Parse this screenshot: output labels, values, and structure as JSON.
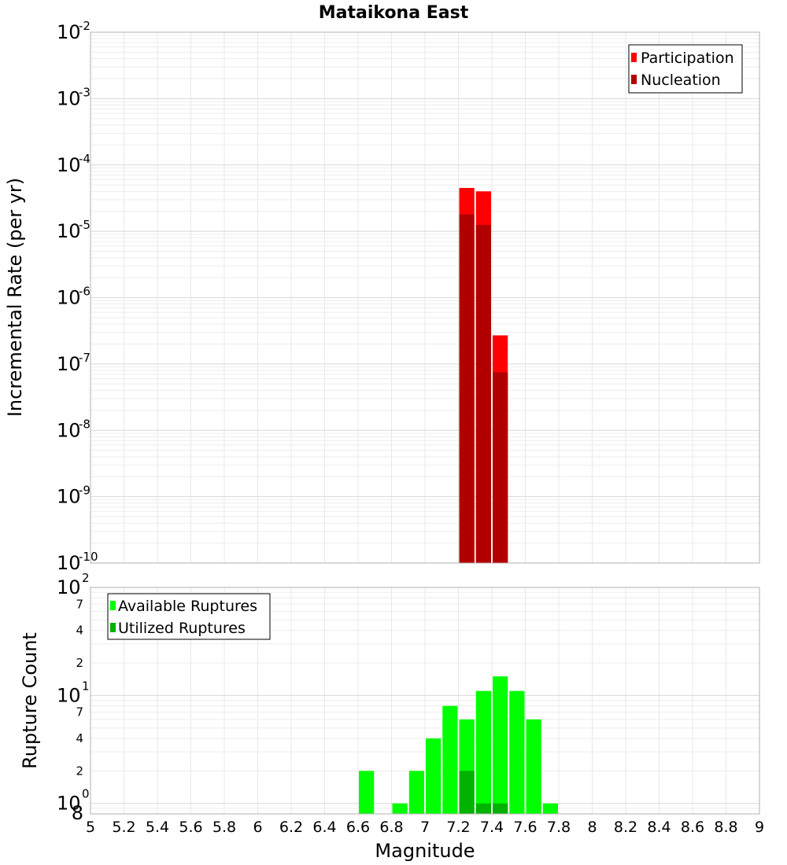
{
  "chart_data": [
    {
      "type": "bar",
      "title": "Mataikona East",
      "xlabel": "",
      "ylabel": "Incremental Rate (per yr)",
      "yscale": "log",
      "ylim": [
        1e-10,
        0.01
      ],
      "xlim": [
        5,
        9
      ],
      "bar_width": 0.1,
      "y_exponent_labels": [
        "-10",
        "-9",
        "-8",
        "-7",
        "-6",
        "-5",
        "-4",
        "-3",
        "-2"
      ],
      "legend": {
        "position": "top-right",
        "entries": [
          "Participation",
          "Nucleation"
        ]
      },
      "series": [
        {
          "name": "Participation",
          "color": "#ff0000",
          "x": [
            7.25,
            7.35,
            7.45
          ],
          "values": [
            4.5e-05,
            4e-05,
            2.7e-07
          ]
        },
        {
          "name": "Nucleation",
          "color": "#b20000",
          "x": [
            7.25,
            7.35,
            7.45
          ],
          "values": [
            1.8e-05,
            1.25e-05,
            7.5e-08
          ]
        }
      ]
    },
    {
      "type": "bar",
      "title": "",
      "xlabel": "Magnitude",
      "ylabel": "Rupture Count",
      "yscale": "log",
      "ylim": [
        0.8,
        100
      ],
      "xlim": [
        5,
        9
      ],
      "bar_width": 0.1,
      "x_ticks": [
        "5",
        "5.2",
        "5.4",
        "5.6",
        "5.8",
        "6",
        "6.2",
        "6.4",
        "6.6",
        "6.8",
        "7",
        "7.2",
        "7.4",
        "7.6",
        "7.8",
        "8",
        "8.2",
        "8.4",
        "8.6",
        "8.8",
        "9"
      ],
      "y_major_labels": [
        {
          "value": 1,
          "base": "10",
          "exp": "0"
        },
        {
          "value": 10,
          "base": "10",
          "exp": "1"
        },
        {
          "value": 100,
          "base": "10",
          "exp": "2"
        }
      ],
      "y_minor_labels": [
        "8",
        "2",
        "4",
        "7",
        "2",
        "4",
        "7"
      ],
      "legend": {
        "position": "top-left",
        "entries": [
          "Available Ruptures",
          "Utilized Ruptures"
        ]
      },
      "series": [
        {
          "name": "Available Ruptures",
          "color": "#00ff00",
          "x": [
            6.65,
            6.85,
            6.95,
            7.05,
            7.15,
            7.25,
            7.35,
            7.45,
            7.55,
            7.65,
            7.75
          ],
          "values": [
            2,
            1,
            2,
            4,
            8,
            6,
            11,
            15,
            11,
            6,
            1
          ]
        },
        {
          "name": "Utilized Ruptures",
          "color": "#00b200",
          "x": [
            7.25,
            7.35,
            7.45
          ],
          "values": [
            2,
            1,
            1
          ]
        }
      ]
    }
  ]
}
